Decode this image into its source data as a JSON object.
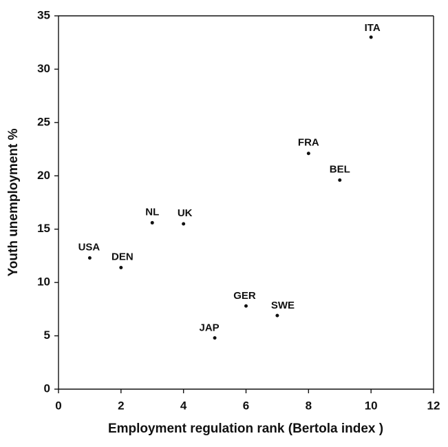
{
  "chart_data": {
    "type": "scatter",
    "xlabel": "Employment regulation rank (Bertola index )",
    "ylabel": "Youth unemployment %",
    "labels": [
      "USA",
      "DEN",
      "NL",
      "UK",
      "JAP",
      "GER",
      "SWE",
      "FRA",
      "BEL",
      "ITA"
    ],
    "x": [
      1,
      2,
      3,
      4,
      5,
      6,
      7,
      8,
      9,
      10
    ],
    "y": [
      12.3,
      11.4,
      15.6,
      15.5,
      4.8,
      7.8,
      6.9,
      22.1,
      19.6,
      33.0
    ],
    "color": "#111111",
    "xlim": [
      0,
      12
    ],
    "xticks": [
      0,
      2,
      4,
      6,
      8,
      10,
      12
    ],
    "ylim": [
      0,
      35
    ],
    "yticks": [
      0,
      5,
      10,
      15,
      20,
      25,
      30,
      35
    ]
  }
}
